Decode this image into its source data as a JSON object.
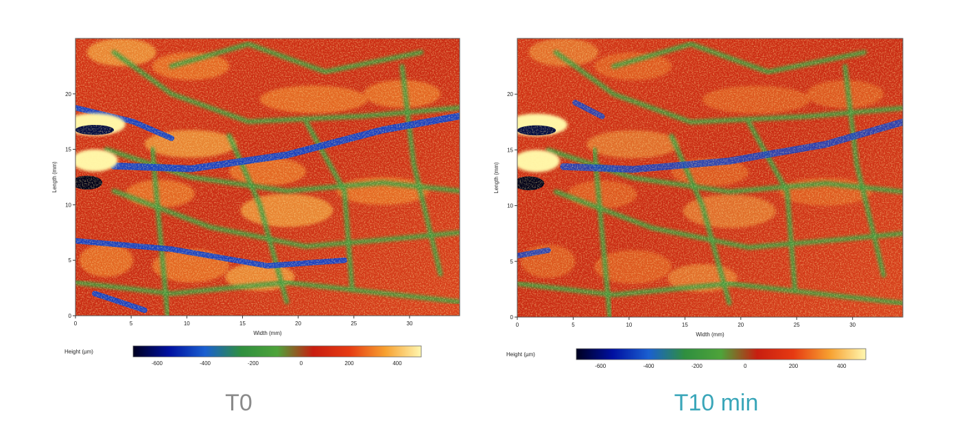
{
  "chart_data": [
    {
      "type": "heatmap",
      "title": "",
      "xlabel": "Width (mm)",
      "ylabel": "Length (mm)",
      "xticks": [
        0,
        5,
        10,
        15,
        20,
        25,
        30
      ],
      "yticks": [
        0,
        5,
        10,
        15,
        20
      ],
      "xlim": [
        0,
        34.5
      ],
      "ylim": [
        0,
        25
      ],
      "colorbar": {
        "label": "Height (µm)",
        "ticks": [
          -600,
          -400,
          -200,
          0,
          200,
          400
        ],
        "range": [
          -700,
          500
        ],
        "colors": [
          "#000020",
          "#0010a0",
          "#1a5fd0",
          "#2f8f3f",
          "#4ea33a",
          "#c81e10",
          "#e63a12",
          "#f7a030",
          "#fff7b0"
        ]
      },
      "caption": "T0"
    },
    {
      "type": "heatmap",
      "title": "",
      "xlabel": "Width (mm)",
      "ylabel": "Length (mm)",
      "xticks": [
        0,
        5,
        10,
        15,
        20,
        25,
        30
      ],
      "yticks": [
        0,
        5,
        10,
        15,
        20
      ],
      "xlim": [
        0,
        34.5
      ],
      "ylim": [
        0,
        25
      ],
      "colorbar": {
        "label": "Height (µm)",
        "ticks": [
          -600,
          -400,
          -200,
          0,
          200,
          400
        ],
        "range": [
          -700,
          500
        ],
        "colors": [
          "#000020",
          "#0010a0",
          "#1a5fd0",
          "#2f8f3f",
          "#4ea33a",
          "#c81e10",
          "#e63a12",
          "#f7a030",
          "#fff7b0"
        ]
      },
      "caption": "T10 min"
    }
  ],
  "captions": {
    "left": "T0",
    "left_color": "#8a8a8a",
    "right": "T10 min",
    "right_color": "#3aa6b9"
  }
}
